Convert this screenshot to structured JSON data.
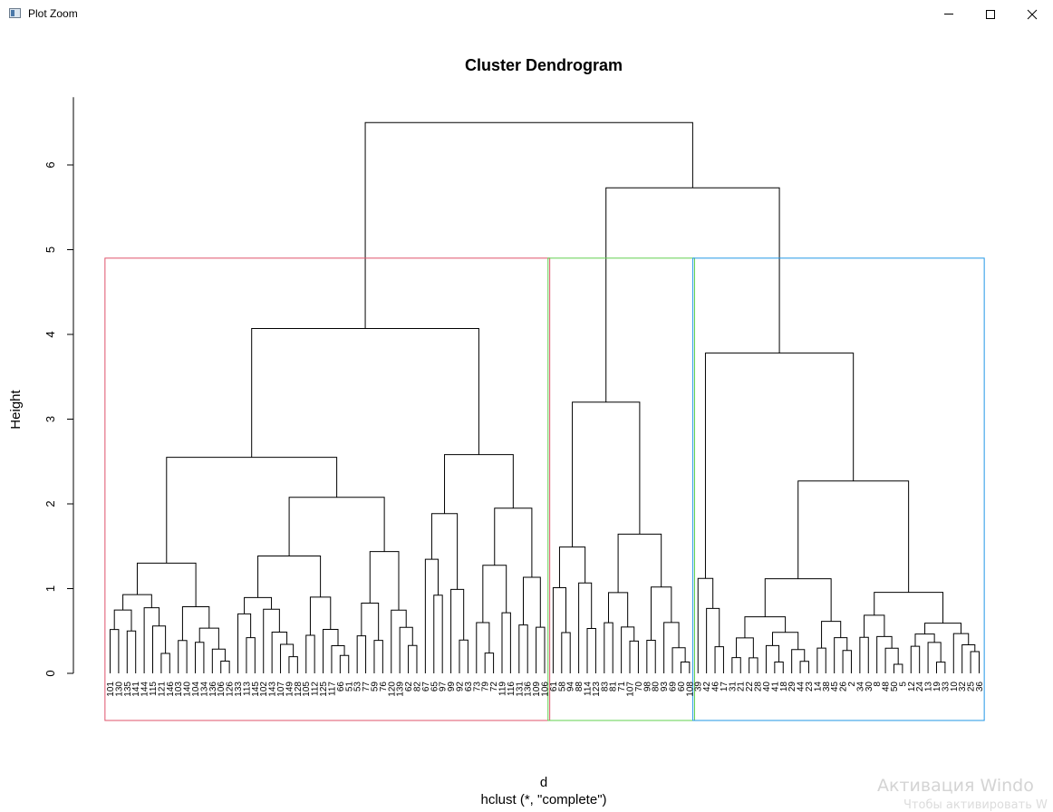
{
  "window": {
    "title": "Plot Zoom",
    "icons": [
      "plot-window-icon",
      "minimize-icon",
      "maximize-icon",
      "close-icon"
    ]
  },
  "watermark": {
    "line1": "Активация Windo",
    "line2": "Чтобы активировать W"
  },
  "chart_data": {
    "type": "dendrogram",
    "title": "Cluster Dendrogram",
    "ylabel": "Height",
    "xlabel": "d",
    "sublabel": "hclust (*, \"complete\")",
    "ylim": [
      0,
      6.8
    ],
    "yticks": [
      0,
      1,
      2,
      3,
      4,
      5,
      6
    ],
    "root": {
      "height": 6.5,
      "left": "red-cluster",
      "right": "green-blue-merge"
    },
    "merges": [
      {
        "name": "root",
        "height": 6.5
      },
      {
        "name": "green-blue-merge",
        "height": 5.73
      },
      {
        "name": "red-cluster",
        "height": 4.07
      },
      {
        "name": "blue-cluster",
        "height": 3.78
      },
      {
        "name": "green-cluster",
        "height": 3.2
      },
      {
        "name": "red-left",
        "height": 2.55
      },
      {
        "name": "red-left-right",
        "height": 2.38
      },
      {
        "name": "red-right",
        "height": 2.8
      },
      {
        "name": "blue-right",
        "height": 2.27
      }
    ],
    "cut_height": 4.9,
    "clusters": [
      {
        "color": "#DF536B",
        "leaves": [
          "101",
          "130",
          "135",
          "141",
          "144",
          "115",
          "121",
          "146",
          "103",
          "140",
          "104",
          "134",
          "136",
          "106",
          "126",
          "133",
          "113",
          "145",
          "102",
          "143",
          "107",
          "149",
          "128",
          "105",
          "112",
          "125",
          "117",
          "66",
          "51",
          "53",
          "77",
          "59",
          "76",
          "120",
          "139",
          "62",
          "82",
          "67",
          "65",
          "97",
          "99",
          "92",
          "63",
          "73",
          "79",
          "72",
          "119",
          "116",
          "131",
          "136",
          "109",
          "106"
        ]
      },
      {
        "color": "#61D04F",
        "leaves": [
          "61",
          "58",
          "94",
          "88",
          "114",
          "123",
          "83",
          "81",
          "71",
          "107",
          "70",
          "98",
          "80",
          "93",
          "69",
          "60",
          "108"
        ]
      },
      {
        "color": "#2297E6",
        "leaves": [
          "39",
          "42",
          "46",
          "17",
          "31",
          "21",
          "22",
          "28",
          "40",
          "41",
          "18",
          "29",
          "44",
          "23",
          "14",
          "38",
          "45",
          "26",
          "2",
          "34",
          "30",
          "8",
          "48",
          "50",
          "5",
          "12",
          "24",
          "13",
          "19",
          "33",
          "10",
          "32",
          "25",
          "36"
        ]
      }
    ]
  }
}
